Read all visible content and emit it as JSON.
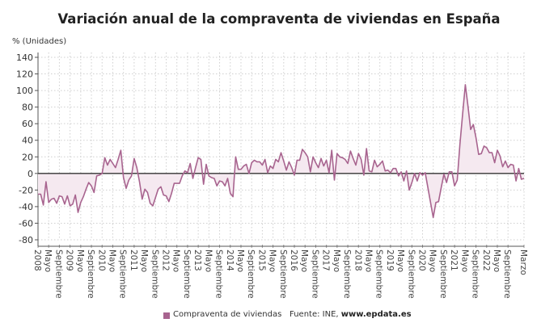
{
  "chart_data": {
    "type": "area",
    "title": "Variación anual de la compraventa de viviendas en España",
    "ylabel": "% (Unidades)",
    "xlabel": "",
    "ylim": [
      -80,
      140
    ],
    "yticks": [
      140,
      120,
      100,
      80,
      60,
      40,
      20,
      0,
      -20,
      -40,
      -60,
      -80
    ],
    "grid": true,
    "legend_position": "bottom",
    "x_start": "2008-01",
    "x_end": "2023-03",
    "frequency": "monthly",
    "xtick_labels": [
      "2008",
      "Mayo",
      "Septiembre",
      "2009",
      "Mayo",
      "Septiembre",
      "2010",
      "Mayo",
      "Septiembre",
      "2011",
      "Mayo",
      "Septiembre",
      "2012",
      "Mayo",
      "Septiembre",
      "2013",
      "Mayo",
      "Septiembre",
      "2014",
      "Mayo",
      "Septiembre",
      "2015",
      "Mayo",
      "Septiembre",
      "2016",
      "Mayo",
      "Septiembre",
      "2017",
      "Mayo",
      "Septiembre",
      "2018",
      "Mayo",
      "Septiembre",
      "2019",
      "Mayo",
      "Septiembre",
      "2020",
      "Mayo",
      "Septiembre",
      "2021",
      "Mayo",
      "Septiembre",
      "2022",
      "Mayo",
      "Septiembre",
      "Marzo"
    ],
    "series": [
      {
        "name": "Compraventa de viviendas",
        "color": "#a8648f",
        "fill": "#f5e9f0",
        "values": [
          -25,
          -25,
          -38,
          -10,
          -35,
          -31,
          -30,
          -36,
          -27,
          -28,
          -37,
          -27,
          -39,
          -37,
          -26,
          -47,
          -35,
          -28,
          -19,
          -11,
          -15,
          -23,
          -3,
          -2,
          0,
          19,
          10,
          17,
          12,
          7,
          17,
          28,
          -5,
          -18,
          -8,
          -3,
          18,
          7,
          -10,
          -31,
          -19,
          -23,
          -36,
          -39,
          -29,
          -19,
          -16,
          -26,
          -27,
          -34,
          -24,
          -12,
          -12,
          -12,
          -3,
          3,
          1,
          12,
          -6,
          7,
          19,
          17,
          -13,
          11,
          -3,
          -5,
          -6,
          -15,
          -9,
          -10,
          -15,
          -6,
          -24,
          -28,
          20,
          5,
          5,
          9,
          11,
          0,
          13,
          16,
          14,
          14,
          10,
          17,
          1,
          9,
          6,
          17,
          14,
          25,
          15,
          4,
          14,
          7,
          -2,
          16,
          16,
          29,
          25,
          20,
          2,
          20,
          13,
          7,
          18,
          9,
          16,
          1,
          28,
          -8,
          24,
          20,
          19,
          17,
          12,
          27,
          18,
          10,
          24,
          17,
          -2,
          30,
          3,
          2,
          16,
          8,
          11,
          15,
          3,
          4,
          1,
          6,
          6,
          -3,
          2,
          -9,
          3,
          -20,
          -11,
          0,
          -9,
          1,
          -2,
          1,
          -17,
          -35,
          -53,
          -35,
          -34,
          -17,
          -1,
          -11,
          2,
          2,
          -15,
          -8,
          35,
          71,
          107,
          81,
          53,
          59,
          43,
          23,
          24,
          33,
          31,
          25,
          25,
          13,
          28,
          21,
          8,
          15,
          7,
          11,
          10,
          -9,
          6,
          -7,
          -6
        ]
      }
    ],
    "zero_line_color": "#333333"
  },
  "legend": {
    "series_label": "Compraventa de viviendas",
    "source_prefix": "Fuente: INE, ",
    "source_site": "www.epdata.es"
  }
}
